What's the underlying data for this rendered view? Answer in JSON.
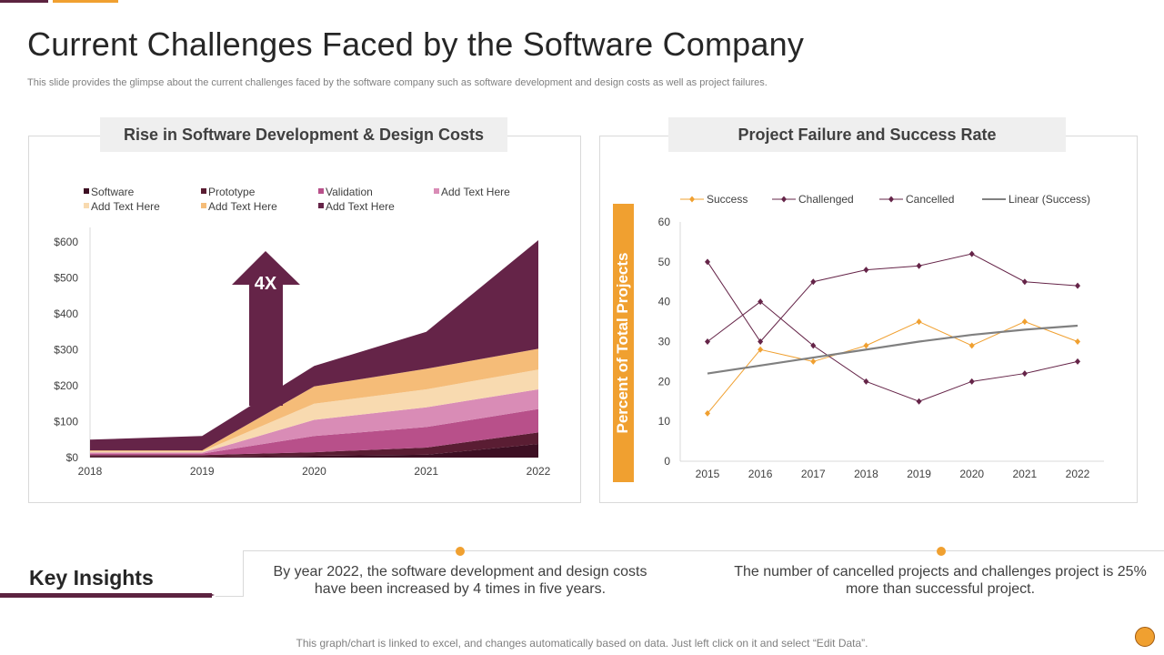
{
  "colors": {
    "accent": "#f0a030",
    "brand": "#5c2340"
  },
  "page": {
    "title": "Current Challenges Faced by the Software Company",
    "subtitle": "This slide provides the glimpse about the current challenges faced by the software company such as software development and design costs as well as project failures.",
    "footer": "This graph/chart is linked to excel, and changes automatically based on data.  Just left click on it and select “Edit Data”."
  },
  "insights": {
    "heading": "Key Insights",
    "items": [
      "By year 2022, the software development and design costs have been increased by 4 times in five years.",
      "The number of cancelled projects and challenges project is 25% more than successful project."
    ]
  },
  "chart_data": [
    {
      "type": "area",
      "title": "Rise in Software Development & Design Costs",
      "annotation": "4X",
      "stacked": true,
      "categories": [
        "2018",
        "2019",
        "2020",
        "2021",
        "2022"
      ],
      "ylim": [
        0,
        600
      ],
      "yticks": [
        0,
        100,
        200,
        300,
        400,
        500,
        600
      ],
      "ytick_labels": [
        "$0",
        "$100",
        "$200",
        "$300",
        "$400",
        "$500",
        "$600"
      ],
      "legend_position": "top",
      "series": [
        {
          "name": "Software",
          "color": "#3d0f23",
          "values": [
            2,
            2,
            5,
            8,
            38
          ]
        },
        {
          "name": "Prototype",
          "color": "#5a1d33",
          "values": [
            5,
            5,
            10,
            20,
            32
          ]
        },
        {
          "name": "Validation",
          "color": "#b8508a",
          "values": [
            4,
            4,
            45,
            57,
            65
          ]
        },
        {
          "name": "Add Text Here",
          "color": "#d98cb6",
          "values": [
            3,
            3,
            45,
            55,
            55
          ]
        },
        {
          "name": "Add Text Here",
          "color": "#f8dab0",
          "values": [
            3,
            3,
            45,
            50,
            55
          ]
        },
        {
          "name": "Add Text Here",
          "color": "#f5bc78",
          "values": [
            3,
            3,
            48,
            57,
            58
          ]
        },
        {
          "name": "Add Text Here",
          "color": "#652448",
          "values": [
            30,
            40,
            57,
            103,
            302
          ]
        }
      ]
    },
    {
      "type": "line",
      "title": "Project Failure and Success Rate",
      "ylabel": "Percent of Total Projects",
      "categories": [
        "2015",
        "2016",
        "2017",
        "2018",
        "2019",
        "2020",
        "2021",
        "2022"
      ],
      "ylim": [
        0,
        60
      ],
      "yticks": [
        0,
        10,
        20,
        30,
        40,
        50,
        60
      ],
      "legend_position": "top",
      "series": [
        {
          "name": "Success",
          "color": "#f0a030",
          "values": [
            12,
            28,
            25,
            29,
            35,
            29,
            35,
            30
          ]
        },
        {
          "name": "Challenged",
          "color": "#652448",
          "values": [
            30,
            40,
            29,
            20,
            15,
            20,
            22,
            25
          ]
        },
        {
          "name": "Cancelled",
          "color": "#652448",
          "values": [
            50,
            30,
            45,
            48,
            49,
            52,
            45,
            44
          ]
        },
        {
          "name": "Linear (Success)",
          "color": "#808080",
          "trendline": true,
          "values": [
            22,
            24,
            26,
            28,
            30,
            31.7,
            33,
            34
          ]
        }
      ]
    }
  ]
}
